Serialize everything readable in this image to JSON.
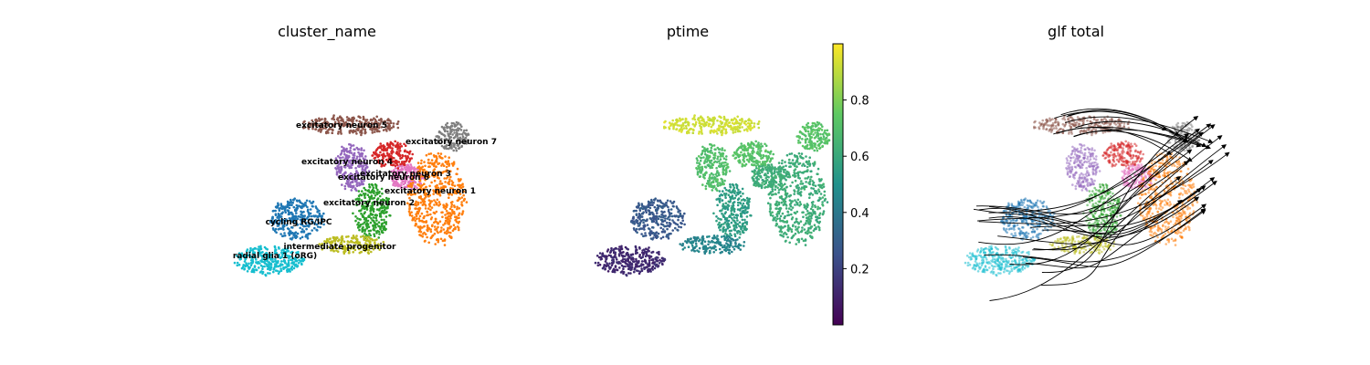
{
  "chart_data": [
    {
      "type": "scatter",
      "title": "cluster_name",
      "color_by": "categorical",
      "categories": [
        {
          "name": "excitatory neuron 5",
          "color": "#8c564b"
        },
        {
          "name": "excitatory neuron 7",
          "color": "#7f7f7f"
        },
        {
          "name": "excitatory neuron 4",
          "color": "#9467bd"
        },
        {
          "name": "excitatory neuron 3",
          "color": "#e377c2"
        },
        {
          "name": "excitatory neuron 6",
          "color": "#d62728"
        },
        {
          "name": "excitatory neuron 1",
          "color": "#ff7f0e"
        },
        {
          "name": "excitatory neuron 2",
          "color": "#2ca02c"
        },
        {
          "name": "cycling RG/IPC",
          "color": "#1f77b4"
        },
        {
          "name": "intermediate progenitor",
          "color": "#bcbd22"
        },
        {
          "name": "radial glia 1 (oRG)",
          "color": "#17becf"
        }
      ],
      "on_data_labels": [
        "excitatory neuron 5",
        "excitatory neuron 7",
        "excitatory neuron 4",
        "excitatory neuron 3",
        "excitatory neuron 6",
        "excitatory neuron 1",
        "excitatory neuron 2",
        "cycling RG/IPC",
        "intermediate progenitor",
        "radial glia 1 (oRG)"
      ],
      "axes_visible": false
    },
    {
      "type": "scatter",
      "title": "ptime",
      "color_by": "continuous",
      "colormap": "viridis",
      "colorbar": {
        "range": [
          0.0,
          1.0
        ],
        "ticks": [
          0.2,
          0.4,
          0.6,
          0.8
        ],
        "tick_labels": [
          "0.2",
          "0.4",
          "0.6",
          "0.8"
        ]
      },
      "axes_visible": false
    },
    {
      "type": "scatter",
      "title": "glf total",
      "color_by": "categorical",
      "overlay": "streamlines with arrowheads",
      "axes_visible": false
    }
  ]
}
